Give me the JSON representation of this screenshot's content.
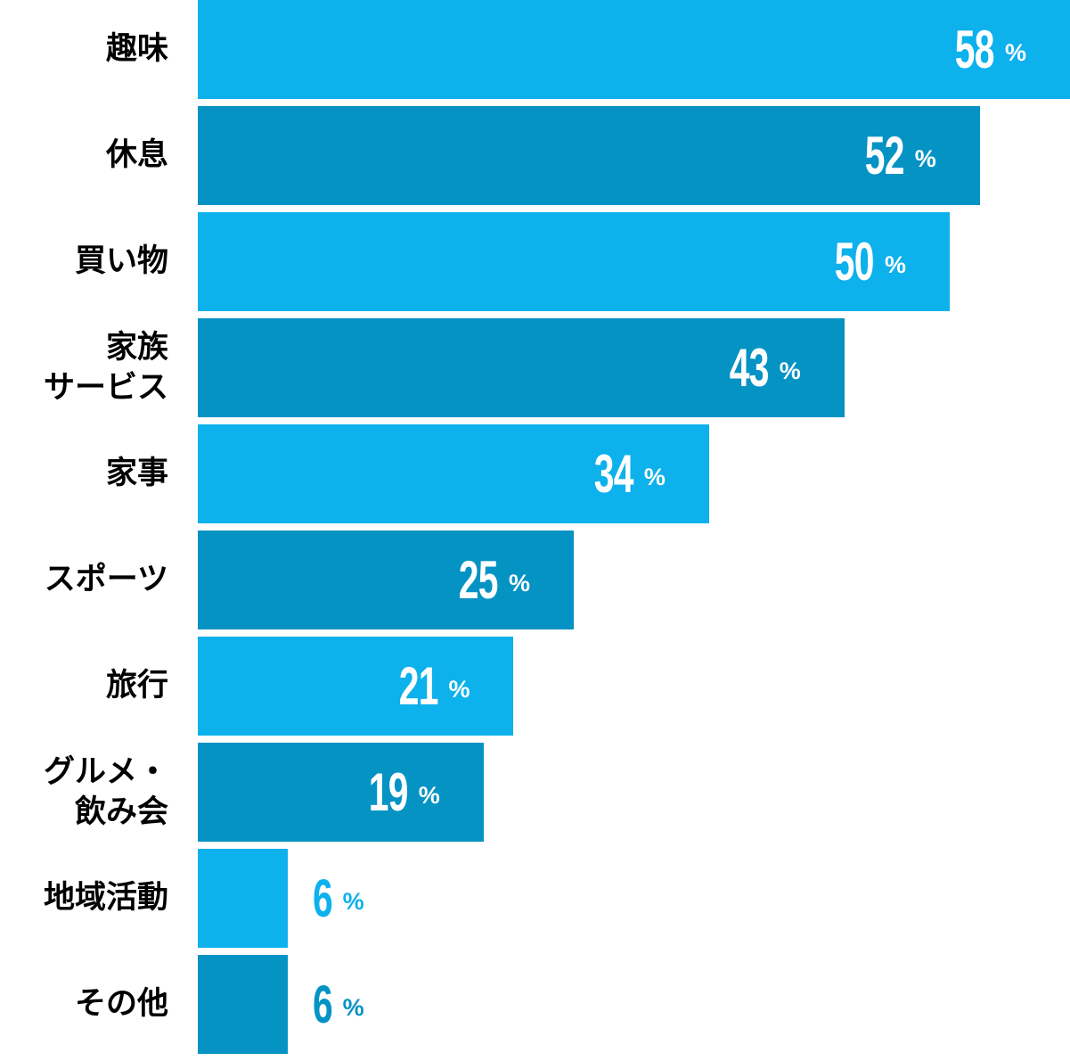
{
  "chart_data": {
    "type": "bar",
    "orientation": "horizontal",
    "title": "",
    "xlabel": "",
    "ylabel": "",
    "unit": "%",
    "axis_max_for_scale": 58,
    "grid": false,
    "legend": false,
    "colors": {
      "light_blue": "#0db1ec",
      "dark_blue": "#0593c4",
      "category_label_text": "#000000",
      "value_text_inside_bar": "#ffffff",
      "background": "#ffffff"
    },
    "categories": [
      "趣味",
      "休息",
      "買い物",
      "家族サービス",
      "家事",
      "スポーツ",
      "旅行",
      "グルメ・飲み会",
      "地域活動",
      "その他"
    ],
    "values": [
      58,
      52,
      50,
      43,
      34,
      25,
      21,
      19,
      6,
      6
    ],
    "bars": [
      {
        "label": "趣味",
        "label_lines": [
          "趣味"
        ],
        "value": 58,
        "color": "light_blue",
        "value_position": "inside"
      },
      {
        "label": "休息",
        "label_lines": [
          "休息"
        ],
        "value": 52,
        "color": "dark_blue",
        "value_position": "inside"
      },
      {
        "label": "買い物",
        "label_lines": [
          "買い物"
        ],
        "value": 50,
        "color": "light_blue",
        "value_position": "inside"
      },
      {
        "label": "家族サービス",
        "label_lines": [
          "家族",
          "サービス"
        ],
        "value": 43,
        "color": "dark_blue",
        "value_position": "inside"
      },
      {
        "label": "家事",
        "label_lines": [
          "家事"
        ],
        "value": 34,
        "color": "light_blue",
        "value_position": "inside"
      },
      {
        "label": "スポーツ",
        "label_lines": [
          "スポーツ"
        ],
        "value": 25,
        "color": "dark_blue",
        "value_position": "inside"
      },
      {
        "label": "旅行",
        "label_lines": [
          "旅行"
        ],
        "value": 21,
        "color": "light_blue",
        "value_position": "inside"
      },
      {
        "label": "グルメ・飲み会",
        "label_lines": [
          "グルメ・",
          "飲み会"
        ],
        "value": 19,
        "color": "dark_blue",
        "value_position": "inside"
      },
      {
        "label": "地域活動",
        "label_lines": [
          "地域活動"
        ],
        "value": 6,
        "color": "light_blue",
        "value_position": "outside"
      },
      {
        "label": "その他",
        "label_lines": [
          "その他"
        ],
        "value": 6,
        "color": "dark_blue",
        "value_position": "outside"
      }
    ]
  }
}
